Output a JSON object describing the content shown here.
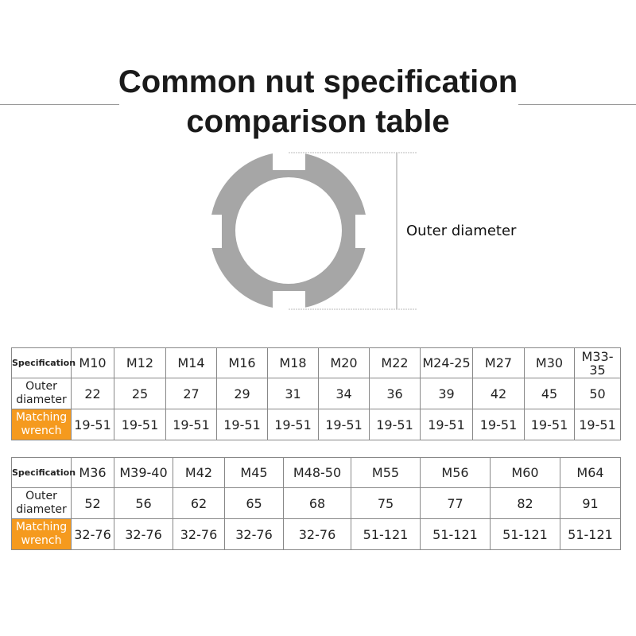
{
  "title_lines": [
    "Common nut specification",
    "comparison table"
  ],
  "diagram": {
    "label": "Outer diameter",
    "ring_color": "#a6a6a6"
  },
  "accent_color": "#f59a1e",
  "row_labels": {
    "spec": "Specification",
    "outer_l1": "Outer",
    "outer_l2": "diameter",
    "wrench_l1": "Matching",
    "wrench_l2": "wrench"
  },
  "table1": {
    "spec": [
      "M10",
      "M12",
      "M14",
      "M16",
      "M18",
      "M20",
      "M22",
      "M24-25",
      "M27",
      "M30",
      "M33-35"
    ],
    "outer": [
      "22",
      "25",
      "27",
      "29",
      "31",
      "34",
      "36",
      "39",
      "42",
      "45",
      "50"
    ],
    "wrench": [
      "19-51",
      "19-51",
      "19-51",
      "19-51",
      "19-51",
      "19-51",
      "19-51",
      "19-51",
      "19-51",
      "19-51",
      "19-51"
    ]
  },
  "table2": {
    "spec": [
      "M36",
      "M39-40",
      "M42",
      "M45",
      "M48-50",
      "M55",
      "M56",
      "M60",
      "M64"
    ],
    "outer": [
      "52",
      "56",
      "62",
      "65",
      "68",
      "75",
      "77",
      "82",
      "91"
    ],
    "wrench": [
      "32-76",
      "32-76",
      "32-76",
      "32-76",
      "32-76",
      "51-121",
      "51-121",
      "51-121",
      "51-121"
    ]
  }
}
